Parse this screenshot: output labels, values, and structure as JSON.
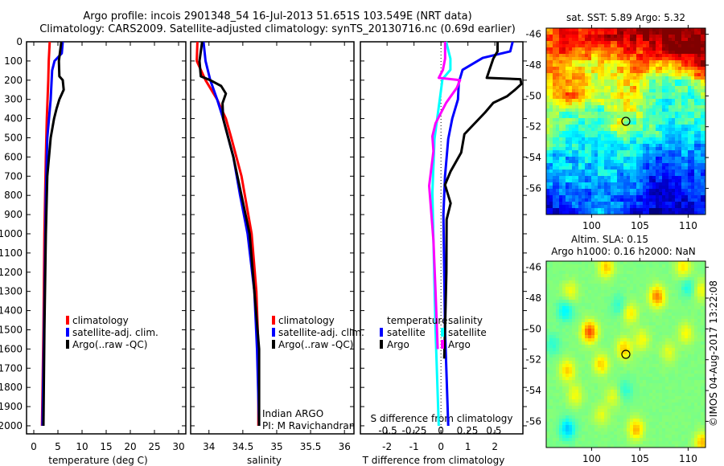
{
  "title": {
    "line1": "Argo profile: incois 2901348_54 16-Jul-2013 51.651S 103.549E (NRT data)",
    "line2": "Climatology: CARS2009. Satellite-adjusted climatology: synTS_20130716.nc (0.69d earlier)"
  },
  "credit": "©IMOS 04-Aug-2017 13:22:08",
  "depth_ticks": [
    0,
    100,
    200,
    300,
    400,
    500,
    600,
    700,
    800,
    900,
    1000,
    1100,
    1200,
    1300,
    1400,
    1500,
    1600,
    1700,
    1800,
    1900,
    2000
  ],
  "chart_data": [
    {
      "type": "line",
      "id": "temperature",
      "xlabel": "temperature (deg C)",
      "ylabel": "depth",
      "xlim": [
        -1.5,
        31.5
      ],
      "ylim": [
        2042,
        0
      ],
      "xticks": [
        0,
        5,
        10,
        15,
        20,
        25,
        30
      ],
      "legend": [
        "climatology",
        "satellite-adj. clim.",
        "Argo(..raw -QC)"
      ],
      "series": [
        {
          "name": "climatology",
          "color": "#ff0000",
          "depth": [
            0,
            100,
            200,
            400,
            600,
            1000,
            1500,
            2000
          ],
          "values": [
            3.3,
            3.1,
            3.0,
            2.7,
            2.5,
            2.2,
            2.0,
            1.7
          ]
        },
        {
          "name": "satellite-adj. clim.",
          "color": "#0000ff",
          "depth": [
            0,
            60,
            100,
            150,
            300,
            500,
            800,
            1200,
            2000
          ],
          "values": [
            6.0,
            5.8,
            4.3,
            3.8,
            3.5,
            2.8,
            2.5,
            2.3,
            1.8
          ]
        },
        {
          "name": "Argo(..raw -QC)",
          "color": "#000000",
          "depth": [
            0,
            100,
            180,
            200,
            250,
            300,
            350,
            400,
            500,
            700,
            1000,
            1500,
            2000
          ],
          "values": [
            5.7,
            5.2,
            5.3,
            6.0,
            6.2,
            5.3,
            4.7,
            4.2,
            3.5,
            2.8,
            2.5,
            2.2,
            2.0
          ]
        }
      ]
    },
    {
      "type": "line",
      "id": "salinity",
      "xlabel": "salinity",
      "xlim": [
        33.73,
        36.14
      ],
      "ylim": [
        2042,
        0
      ],
      "xticks": [
        34,
        34.5,
        35,
        35.5,
        36
      ],
      "legend": [
        "climatology",
        "satellite-adj. clim.",
        "Argo(..raw -QC)"
      ],
      "annotation": [
        "Indian ARGO",
        "PI: M Ravichandran"
      ],
      "series": [
        {
          "name": "climatology",
          "color": "#ff0000",
          "depth": [
            0,
            100,
            200,
            300,
            400,
            500,
            700,
            1000,
            1300,
            1600,
            2000
          ],
          "values": [
            33.83,
            33.82,
            33.95,
            34.12,
            34.25,
            34.33,
            34.48,
            34.63,
            34.7,
            34.73,
            34.73
          ]
        },
        {
          "name": "satellite-adj. clim.",
          "color": "#0000ff",
          "depth": [
            0,
            100,
            200,
            300,
            400,
            600,
            800,
            1000,
            1300,
            1600,
            2000
          ],
          "values": [
            33.92,
            33.95,
            34.02,
            34.12,
            34.21,
            34.36,
            34.46,
            34.57,
            34.67,
            34.71,
            34.74
          ]
        },
        {
          "name": "Argo(..raw -QC)",
          "color": "#000000",
          "depth": [
            0,
            100,
            180,
            200,
            230,
            270,
            320,
            400,
            600,
            1000,
            1600,
            2000
          ],
          "values": [
            33.9,
            33.86,
            33.88,
            34.02,
            34.18,
            34.25,
            34.2,
            34.21,
            34.36,
            34.6,
            34.74,
            34.74
          ]
        }
      ]
    },
    {
      "type": "line",
      "id": "difference",
      "xlabel": "T difference from climatology",
      "x2label": "S difference from climatology",
      "xlim": [
        -2.99,
        3.04
      ],
      "x2lim": [
        -0.758,
        0.773
      ],
      "ylim": [
        2042,
        0
      ],
      "xticks": [
        -2,
        -1,
        0,
        1,
        2
      ],
      "x2ticks": [
        -0.5,
        -0.25,
        0,
        0.25,
        0.5
      ],
      "legend_headers": [
        "temperature",
        "salinity"
      ],
      "legend": [
        "satellite",
        "Argo",
        "satellite",
        "Argo"
      ],
      "series": [
        {
          "name": "satellite",
          "group": "temperature",
          "axis": "T",
          "color": "#0000ff",
          "depth": [
            0,
            50,
            84,
            146,
            213,
            300,
            400,
            506,
            700,
            900,
            1500,
            2000
          ],
          "values": [
            2.66,
            2.57,
            1.55,
            0.8,
            0.66,
            0.63,
            0.42,
            0.27,
            0.15,
            0.09,
            0.15,
            0.27
          ]
        },
        {
          "name": "Argo",
          "group": "temperature",
          "axis": "T",
          "color": "#000000",
          "depth": [
            0,
            50,
            88,
            188,
            195,
            220,
            250,
            284,
            318,
            368,
            481,
            577,
            674,
            745,
            841,
            925,
            1200,
            1500,
            1650
          ],
          "values": [
            2.1,
            2.1,
            1.94,
            1.7,
            2.95,
            2.98,
            2.75,
            2.45,
            1.94,
            1.64,
            0.87,
            0.75,
            0.36,
            0.15,
            0.36,
            0.21,
            0.2,
            0.15,
            0.12
          ]
        },
        {
          "name": "satellite",
          "group": "salinity",
          "axis": "S",
          "color": "#00ffff",
          "depth": [
            0,
            88,
            146,
            195,
            290,
            506,
            786,
            1034,
            1500,
            2000
          ],
          "values": [
            0.05,
            0.09,
            0.09,
            0.015,
            -0.008,
            -0.06,
            -0.08,
            -0.07,
            -0.05,
            -0.02
          ]
        },
        {
          "name": "Argo",
          "group": "salinity",
          "axis": "S",
          "color": "#ff00ff",
          "depth": [
            0,
            88,
            146,
            188,
            200,
            240,
            318,
            425,
            492,
            570,
            750,
            1034,
            1300,
            1600
          ],
          "values": [
            0.04,
            0.04,
            0.02,
            -0.02,
            0.18,
            0.15,
            0.05,
            -0.05,
            -0.08,
            -0.07,
            -0.11,
            -0.07,
            -0.05,
            -0.03
          ]
        }
      ]
    },
    {
      "type": "heatmap",
      "id": "sst-map",
      "title": "sat. SST: 5.89 Argo: 5.32",
      "xlim": [
        95.3,
        111.8
      ],
      "ylim": [
        -57.7,
        -45.6
      ],
      "xticks": [
        100,
        105,
        110
      ],
      "yticks": [
        -46,
        -48,
        -50,
        -52,
        -54,
        -56
      ],
      "argo_position": {
        "lon": 103.549,
        "lat": -51.651
      },
      "colormap": "jet",
      "grid_lats": [
        -46,
        -47,
        -48,
        -49,
        -50,
        -51,
        -52,
        -53,
        -54,
        -55,
        -56,
        -57.5
      ],
      "grid_lons": [
        95.3,
        97.1,
        99.0,
        100.8,
        102.6,
        104.5,
        106.3,
        108.1,
        110.0,
        111.8
      ],
      "grid_values_normalized": [
        [
          0.8,
          0.85,
          0.8,
          0.9,
          0.95,
          0.95,
          1,
          1,
          1,
          1
        ],
        [
          0.8,
          0.85,
          0.8,
          0.75,
          0.8,
          0.85,
          0.9,
          1,
          1,
          1
        ],
        [
          0.75,
          0.7,
          0.65,
          0.6,
          0.65,
          0.75,
          0.7,
          0.7,
          0.85,
          1
        ],
        [
          0.7,
          0.7,
          0.65,
          0.55,
          0.6,
          0.7,
          0.5,
          0.45,
          0.5,
          0.7
        ],
        [
          0.65,
          0.75,
          0.75,
          0.6,
          0.6,
          0.65,
          0.45,
          0.4,
          0.45,
          0.5
        ],
        [
          0.55,
          0.5,
          0.45,
          0.45,
          0.6,
          0.6,
          0.4,
          0.4,
          0.45,
          0.45
        ],
        [
          0.55,
          0.45,
          0.4,
          0.4,
          0.6,
          0.45,
          0.5,
          0.35,
          0.4,
          0.4
        ],
        [
          0.5,
          0.4,
          0.4,
          0.4,
          0.4,
          0.4,
          0.4,
          0.3,
          0.3,
          0.3
        ],
        [
          0.35,
          0.3,
          0.35,
          0.3,
          0.4,
          0.35,
          0.2,
          0.2,
          0.25,
          0.25
        ],
        [
          0.3,
          0.35,
          0.3,
          0.35,
          0.3,
          0.3,
          0.15,
          0.2,
          0.2,
          0.2
        ],
        [
          0.2,
          0.25,
          0.25,
          0.25,
          0.25,
          0.25,
          0.15,
          0.1,
          0.15,
          0.15
        ],
        [
          0.1,
          0.15,
          0.2,
          0.3,
          0.2,
          0.1,
          0.05,
          0.1,
          0.1,
          0.15
        ]
      ]
    },
    {
      "type": "heatmap",
      "id": "sla-map",
      "title": "Altim. SLA: 0.15",
      "subtitle": "Argo h1000: 0.16 h2000: NaN",
      "xlim": [
        95.3,
        111.8
      ],
      "ylim": [
        -57.7,
        -45.6
      ],
      "xticks": [
        100,
        105,
        110
      ],
      "yticks": [
        -46,
        -48,
        -50,
        -52,
        -54,
        -56
      ],
      "argo_position": {
        "lon": 103.549,
        "lat": -51.651
      },
      "colormap": "jet",
      "base_value_normalized": 0.5,
      "anomalies": [
        {
          "lon": 99.8,
          "lat": -50.2,
          "amp": 0.3
        },
        {
          "lon": 106.8,
          "lat": -47.9,
          "amp": 0.25
        },
        {
          "lon": 103.4,
          "lat": -51.3,
          "amp": 0.18
        },
        {
          "lon": 101.0,
          "lat": -52.3,
          "amp": 0.17
        },
        {
          "lon": 97.5,
          "lat": -52.7,
          "amp": 0.18
        },
        {
          "lon": 104.6,
          "lat": -56.5,
          "amp": 0.2
        },
        {
          "lon": 101.5,
          "lat": -46.0,
          "amp": 0.18
        },
        {
          "lon": 109.5,
          "lat": -46.0,
          "amp": 0.15
        },
        {
          "lon": 111.5,
          "lat": -57.4,
          "amp": 0.2
        },
        {
          "lon": 97.8,
          "lat": -47.6,
          "amp": 0.12
        },
        {
          "lon": 104.0,
          "lat": -49.0,
          "amp": 0.14
        },
        {
          "lon": 105.2,
          "lat": -50.7,
          "amp": 0.12
        },
        {
          "lon": 108.0,
          "lat": -51.5,
          "amp": 0.1
        },
        {
          "lon": 98.3,
          "lat": -54.3,
          "amp": 0.12
        },
        {
          "lon": 102.2,
          "lat": -54.4,
          "amp": 0.1
        },
        {
          "lon": 101.0,
          "lat": -55.6,
          "amp": 0.1
        },
        {
          "lon": 111.3,
          "lat": -47.5,
          "amp": 0.12
        },
        {
          "lon": 109.8,
          "lat": -50.3,
          "amp": 0.12
        },
        {
          "lon": 97.3,
          "lat": -48.8,
          "amp": -0.14
        },
        {
          "lon": 97.5,
          "lat": -56.5,
          "amp": -0.18
        },
        {
          "lon": 103.5,
          "lat": -54.0,
          "amp": -0.08
        },
        {
          "lon": 110.0,
          "lat": -47.3,
          "amp": -0.1
        },
        {
          "lon": 102.8,
          "lat": -48.5,
          "amp": -0.08
        },
        {
          "lon": 96.0,
          "lat": -51.0,
          "amp": -0.08
        }
      ]
    }
  ]
}
